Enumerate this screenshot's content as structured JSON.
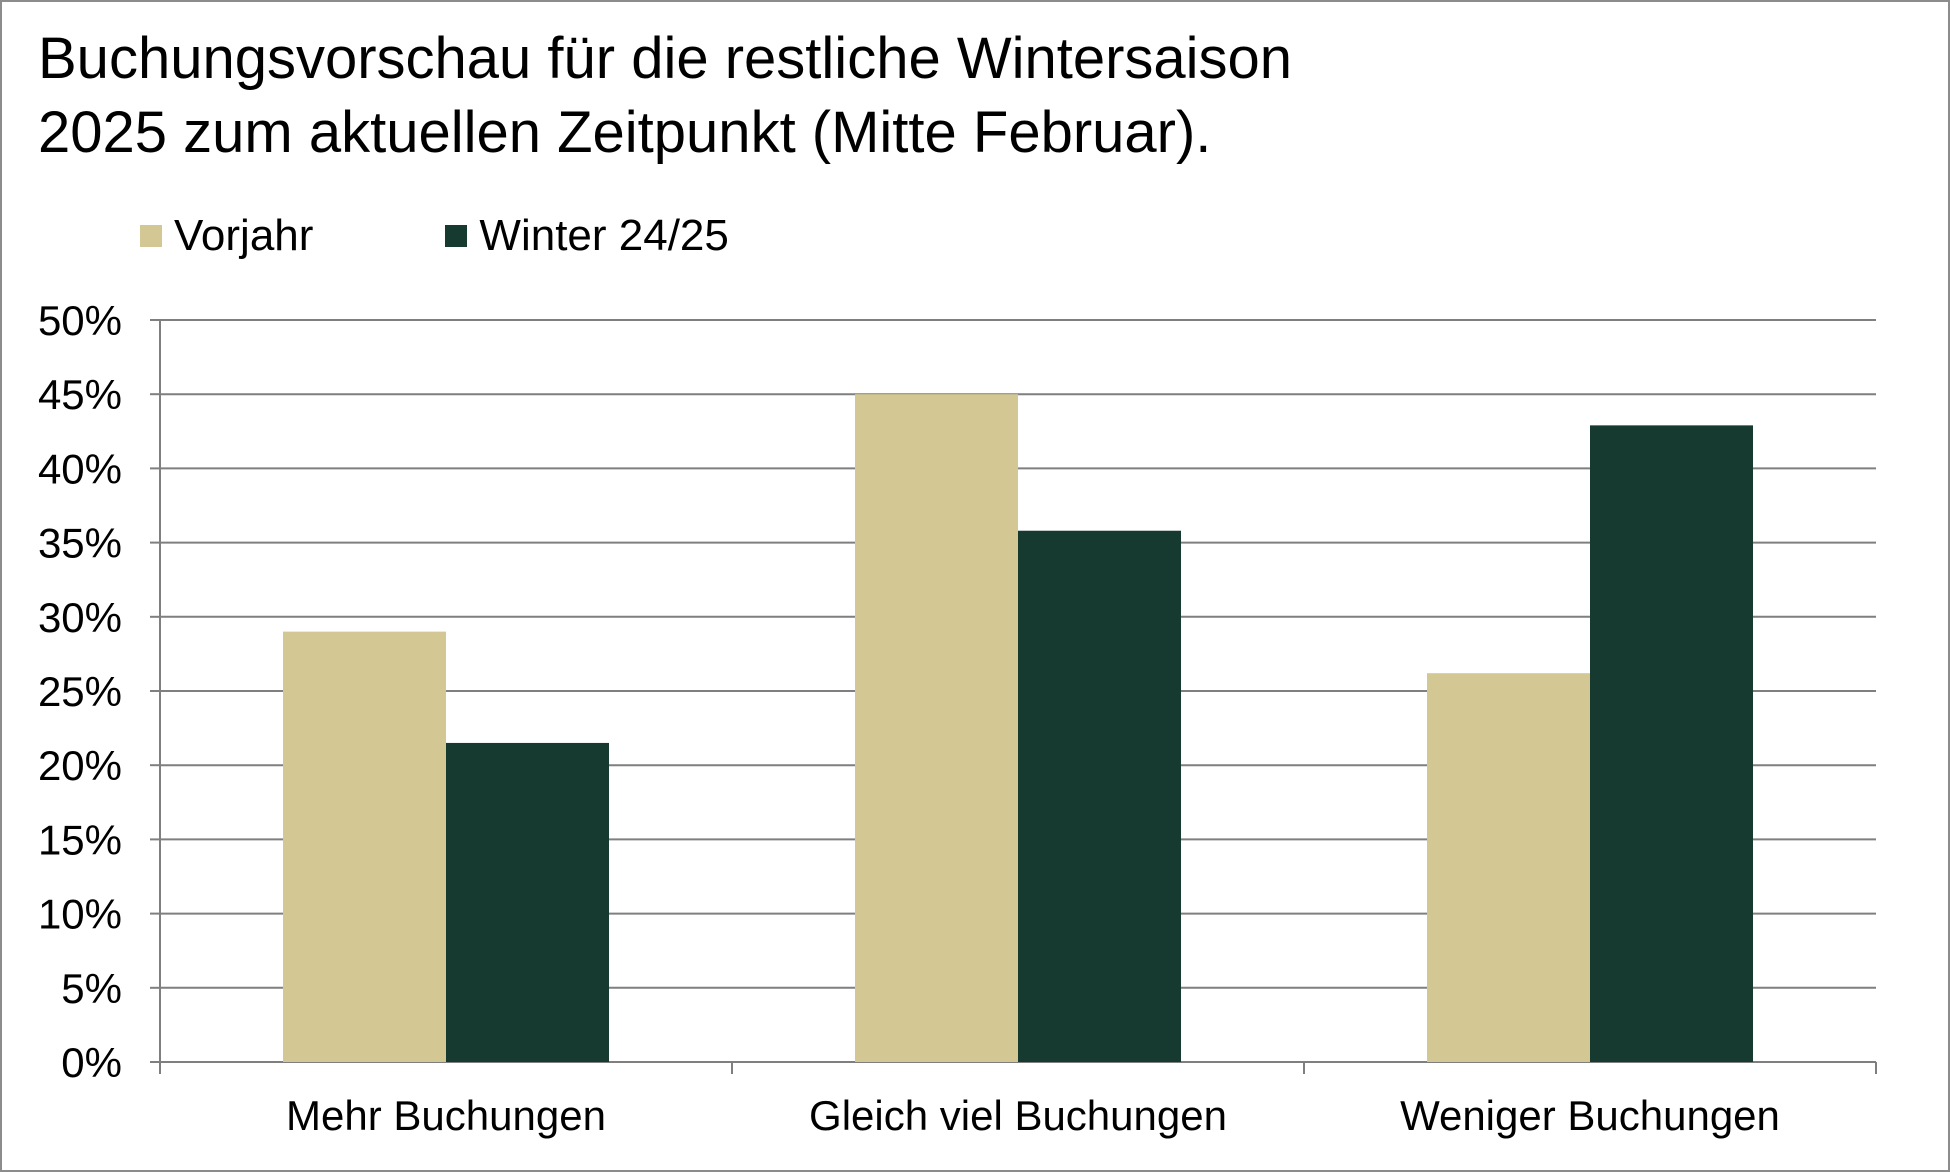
{
  "title_lines": [
    "Buchungsvorschau für die restliche Wintersaison",
    "2025 zum aktuellen Zeitpunkt (Mitte Februar)."
  ],
  "colors": {
    "vorjahr": "#d3c794",
    "winter": "#163a2f",
    "grid": "#7f7f7f",
    "text": "#000000"
  },
  "chart_data": {
    "type": "bar",
    "title": "Buchungsvorschau für die restliche Wintersaison 2025 zum aktuellen Zeitpunkt (Mitte Februar).",
    "categories": [
      "Mehr Buchungen",
      "Gleich viel Buchungen",
      "Weniger Buchungen"
    ],
    "series": [
      {
        "name": "Vorjahr",
        "color": "#d3c794",
        "values": [
          29,
          45,
          26.2
        ]
      },
      {
        "name": "Winter 24/25",
        "color": "#163a2f",
        "values": [
          21.5,
          35.8,
          42.9
        ]
      }
    ],
    "ylim": [
      0,
      50
    ],
    "yticks": [
      0,
      5,
      10,
      15,
      20,
      25,
      30,
      35,
      40,
      45,
      50
    ],
    "ytick_labels": [
      "0%",
      "5%",
      "10%",
      "15%",
      "20%",
      "25%",
      "30%",
      "35%",
      "40%",
      "45%",
      "50%"
    ],
    "grid": true,
    "legend_position": "top-left",
    "xlabel": "",
    "ylabel": ""
  }
}
